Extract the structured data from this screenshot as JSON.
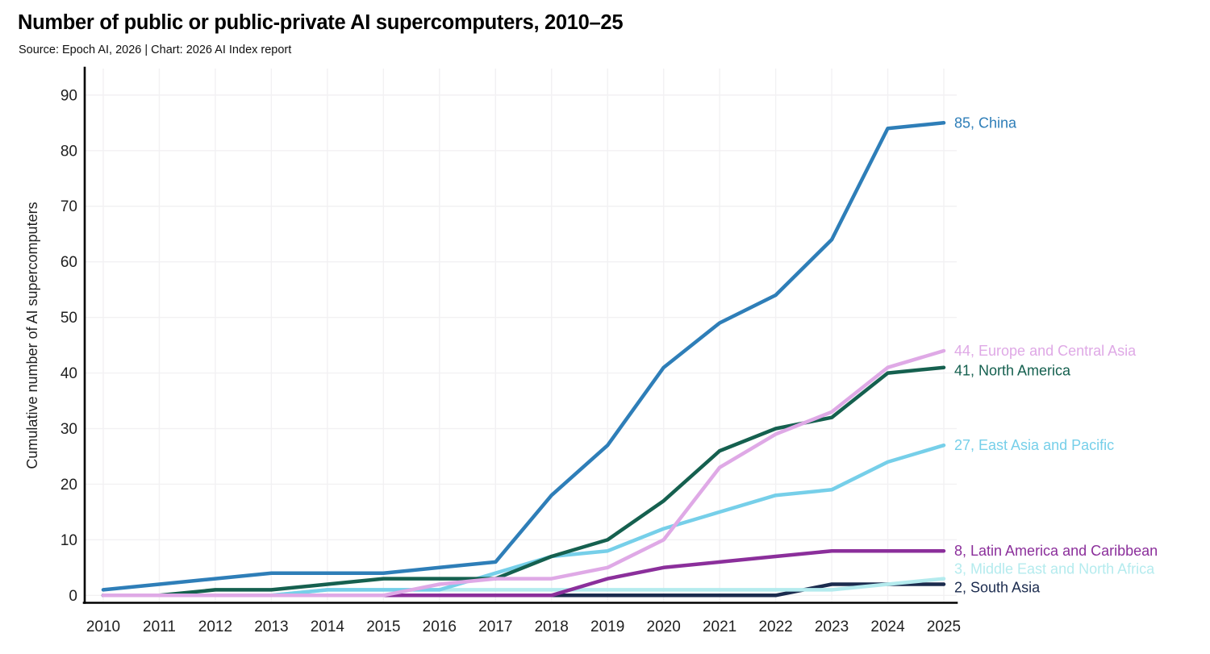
{
  "header": {
    "title": "Number of public or public-private AI supercomputers, 2010–25",
    "subtitle": "Source: Epoch AI, 2026 | Chart: 2026 AI Index report"
  },
  "colors": {
    "background": "#ffffff",
    "axis": "#000000",
    "grid": "#f2f1f3",
    "tick_text": "#1f1f1f"
  },
  "chart_data": {
    "type": "line",
    "title": "Number of public or public-private AI supercomputers, 2010–25",
    "subtitle": "Source: Epoch AI, 2026 | Chart: 2026 AI Index report",
    "xlabel": "",
    "ylabel": "Cumulative number of AI supercomputers",
    "x": [
      2010,
      2011,
      2012,
      2013,
      2014,
      2015,
      2016,
      2017,
      2018,
      2019,
      2020,
      2021,
      2022,
      2023,
      2024,
      2025
    ],
    "x_tick_labels": [
      "2010",
      "2011",
      "2012",
      "2013",
      "2014",
      "2015",
      "2016",
      "2017",
      "2018",
      "2019",
      "2020",
      "2021",
      "2022",
      "2023",
      "2024",
      "2025"
    ],
    "y_ticks": [
      0,
      10,
      20,
      30,
      40,
      50,
      60,
      70,
      80,
      90
    ],
    "ylim": [
      0,
      90
    ],
    "grid": true,
    "legend_position": "right-end-labels",
    "series": [
      {
        "id": "south-asia",
        "name": "South Asia",
        "color": "#1b2b4e",
        "values": [
          0,
          0,
          0,
          0,
          0,
          0,
          0,
          0,
          0,
          0,
          0,
          0,
          0,
          2,
          2,
          2
        ],
        "end_label": "2, South Asia"
      },
      {
        "id": "mena",
        "name": "Middle East and North Africa",
        "color": "#b4ebee",
        "values": [
          0,
          0,
          0,
          0,
          1,
          1,
          1,
          1,
          1,
          1,
          1,
          1,
          1,
          1,
          2,
          3
        ],
        "end_label": "3, Middle East and North Africa"
      },
      {
        "id": "east-asia-pacific",
        "name": "East Asia and Pacific",
        "color": "#76cfe9",
        "values": [
          0,
          0,
          0,
          0,
          1,
          1,
          1,
          4,
          7,
          8,
          12,
          15,
          18,
          19,
          24,
          27
        ],
        "end_label": "27, East Asia and Pacific"
      },
      {
        "id": "latin-america-caribbean",
        "name": "Latin America and Caribbean",
        "color": "#8b2f9b",
        "values": [
          0,
          0,
          0,
          0,
          0,
          0,
          0,
          0,
          0,
          3,
          5,
          6,
          7,
          8,
          8,
          8
        ],
        "end_label": "8, Latin America and Caribbean"
      },
      {
        "id": "north-america",
        "name": "North America",
        "color": "#15604f",
        "values": [
          0,
          0,
          1,
          1,
          2,
          3,
          3,
          3,
          7,
          10,
          17,
          26,
          30,
          32,
          40,
          41
        ],
        "end_label": "41, North America"
      },
      {
        "id": "europe-central-asia",
        "name": "Europe and Central Asia",
        "color": "#dfa9e6",
        "values": [
          0,
          0,
          0,
          0,
          0,
          0,
          2,
          3,
          3,
          5,
          10,
          23,
          29,
          33,
          41,
          44
        ],
        "end_label": "44, Europe and Central Asia"
      },
      {
        "id": "china",
        "name": "China",
        "color": "#2e7eb8",
        "values": [
          1,
          2,
          3,
          4,
          4,
          4,
          5,
          6,
          18,
          27,
          41,
          49,
          54,
          64,
          84,
          85
        ],
        "end_label": "85, China"
      }
    ]
  }
}
